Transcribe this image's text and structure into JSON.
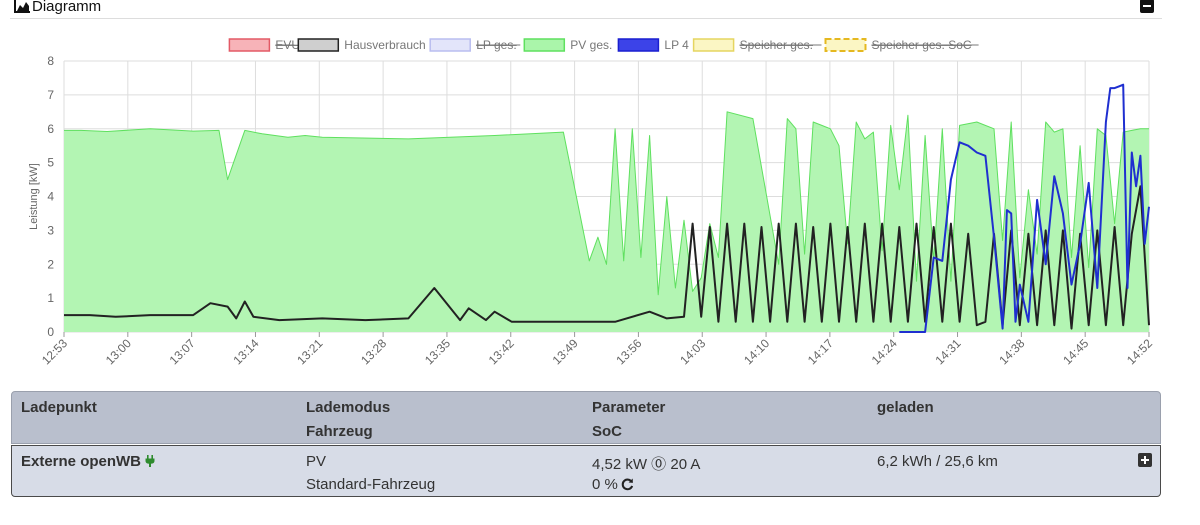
{
  "panel": {
    "title": "Diagramm"
  },
  "chart_data": {
    "type": "area",
    "ylabel": "Leistung [kW]",
    "ylim": [
      0,
      8
    ],
    "y_ticks": [
      "0",
      "1",
      "2",
      "3",
      "4",
      "5",
      "6",
      "7",
      "8"
    ],
    "x_ticks": [
      "12:53",
      "13:00",
      "13:07",
      "13:14",
      "13:21",
      "13:28",
      "13:35",
      "13:42",
      "13:49",
      "13:56",
      "14:03",
      "14:10",
      "14:17",
      "14:24",
      "14:31",
      "14:38",
      "14:45",
      "14:52"
    ],
    "grid": true,
    "legend_position": "top",
    "legend": [
      {
        "label": "EVU",
        "fill": "#f7b3b8",
        "stroke": "#e35a66",
        "hidden": true,
        "dashed": false
      },
      {
        "label": "Hausverbrauch",
        "fill": "#cfcfcf",
        "stroke": "#222222",
        "hidden": false,
        "dashed": false
      },
      {
        "label": "LP ges.",
        "fill": "#e3e5fa",
        "stroke": "#b9bdf0",
        "hidden": true,
        "dashed": false
      },
      {
        "label": "PV ges.",
        "fill": "#aaf5aa",
        "stroke": "#5fe05f",
        "hidden": false,
        "dashed": false
      },
      {
        "label": "LP 4",
        "fill": "#3c43e8",
        "stroke": "#1a1fd0",
        "hidden": false,
        "dashed": false
      },
      {
        "label": "Speicher ges.",
        "fill": "#fbf6c4",
        "stroke": "#e5d560",
        "hidden": true,
        "dashed": false
      },
      {
        "label": "Speicher ges. SoC",
        "fill": "#fbf6c4",
        "stroke": "#e5b820",
        "hidden": true,
        "dashed": true
      }
    ],
    "series": [
      {
        "name": "PV ges.",
        "color": "#5fe05f",
        "fill": "#b3f5b3",
        "x": [
          0,
          2,
          5,
          10,
          15,
          18,
          19,
          21,
          23,
          26,
          28,
          30,
          40,
          50,
          58,
          61,
          62,
          63,
          64,
          65,
          66,
          67,
          68,
          69,
          70,
          71,
          72,
          73,
          74,
          75,
          76,
          77,
          80,
          83,
          84,
          85,
          86,
          87,
          88,
          89,
          90,
          91,
          92,
          93,
          94,
          95,
          96,
          97,
          98,
          99,
          100,
          101,
          102,
          103,
          104,
          106,
          108,
          109,
          110,
          111,
          112,
          113,
          114,
          115,
          116,
          117,
          118,
          119,
          120,
          121,
          122,
          123,
          124,
          125,
          126
        ],
        "values": [
          5.95,
          5.95,
          5.92,
          6.0,
          5.93,
          5.95,
          4.5,
          5.95,
          5.85,
          5.75,
          5.8,
          5.75,
          5.7,
          5.8,
          5.9,
          2.1,
          2.8,
          2.0,
          6.0,
          2.1,
          6.0,
          2.2,
          5.8,
          1.1,
          4.0,
          1.3,
          3.3,
          1.2,
          1.6,
          3.2,
          2.2,
          6.5,
          6.3,
          2.0,
          6.3,
          6.0,
          2.3,
          6.2,
          6.1,
          6.0,
          5.5,
          2.6,
          6.2,
          5.7,
          5.9,
          2.4,
          6.1,
          4.2,
          6.4,
          1.5,
          5.8,
          2.1,
          6.0,
          1.5,
          6.1,
          6.2,
          6.0,
          2.7,
          6.2,
          1.6,
          4.2,
          2.3,
          6.2,
          5.9,
          6.0,
          2.2,
          5.5,
          1.9,
          6.0,
          5.8,
          3.2,
          5.9,
          5.95,
          6.0,
          6.0
        ]
      },
      {
        "name": "Hausverbrauch",
        "color": "#222222",
        "x": [
          0,
          3,
          6,
          10,
          15,
          17,
          19,
          20,
          21,
          22,
          25,
          30,
          35,
          40,
          43,
          46,
          47,
          49,
          50,
          52,
          55,
          60,
          64,
          68,
          70,
          72,
          73,
          74,
          75,
          76,
          77,
          78,
          79,
          80,
          81,
          82,
          83,
          84,
          85,
          86,
          87,
          88,
          89,
          90,
          91,
          92,
          93,
          94,
          95,
          96,
          97,
          98,
          99,
          100,
          101,
          102,
          103,
          104,
          105,
          106,
          107,
          108,
          109,
          110,
          111,
          112,
          113,
          114,
          115,
          116,
          117,
          118,
          119,
          120,
          121,
          122,
          123,
          124,
          125,
          126
        ],
        "values": [
          0.5,
          0.5,
          0.45,
          0.5,
          0.5,
          0.85,
          0.75,
          0.4,
          0.9,
          0.45,
          0.35,
          0.4,
          0.35,
          0.4,
          1.3,
          0.35,
          0.7,
          0.35,
          0.6,
          0.3,
          0.3,
          0.3,
          0.3,
          0.6,
          0.4,
          0.45,
          3.2,
          0.45,
          3.1,
          0.3,
          3.2,
          0.3,
          3.2,
          0.3,
          3.1,
          0.3,
          3.2,
          0.3,
          3.2,
          0.3,
          3.1,
          0.3,
          3.2,
          0.3,
          3.1,
          0.3,
          3.2,
          0.3,
          3.2,
          0.3,
          3.1,
          0.3,
          3.2,
          0.3,
          3.1,
          0.3,
          3.2,
          0.3,
          2.9,
          0.2,
          0.3,
          2.9,
          0.2,
          3.0,
          0.2,
          2.9,
          0.2,
          3.0,
          0.2,
          3.0,
          0.1,
          2.9,
          0.2,
          3.0,
          0.2,
          3.1,
          0.2,
          2.9,
          4.3,
          0.2
        ]
      },
      {
        "name": "LP 4",
        "color": "#1f2fd0",
        "x": [
          97,
          100,
          101,
          102,
          103,
          104,
          105,
          106,
          107,
          108,
          109,
          109.5,
          110,
          110.5,
          111,
          112,
          113,
          114,
          115,
          116,
          117,
          118,
          119,
          120,
          121,
          121.5,
          122,
          122.5,
          123,
          123.5,
          124,
          124.5,
          125,
          125.5,
          126
        ],
        "values": [
          0,
          0,
          2.2,
          2.1,
          4.5,
          5.6,
          5.5,
          5.3,
          5.2,
          2.8,
          0.1,
          3.6,
          3.5,
          0.3,
          1.4,
          0.3,
          3.9,
          2.0,
          4.6,
          3.5,
          1.4,
          2.6,
          4.4,
          1.3,
          6.2,
          7.2,
          7.2,
          7.25,
          7.3,
          1.3,
          5.3,
          4.3,
          5.2,
          2.6,
          3.7
        ]
      }
    ]
  },
  "table": {
    "headers": {
      "col1": "Ladepunkt",
      "col2_line1": "Lademodus",
      "col2_line2": "Fahrzeug",
      "col3_line1": "Parameter",
      "col3_line2": "SoC",
      "col4": "geladen"
    },
    "row": {
      "ladepunkt": "Externe openWB",
      "lademodus": "PV",
      "fahrzeug": "Standard-Fahrzeug",
      "parameter": "4,52 kW ⓪ 20 A",
      "soc": "0 %",
      "geladen": "6,2 kWh / 25,6 km"
    }
  }
}
